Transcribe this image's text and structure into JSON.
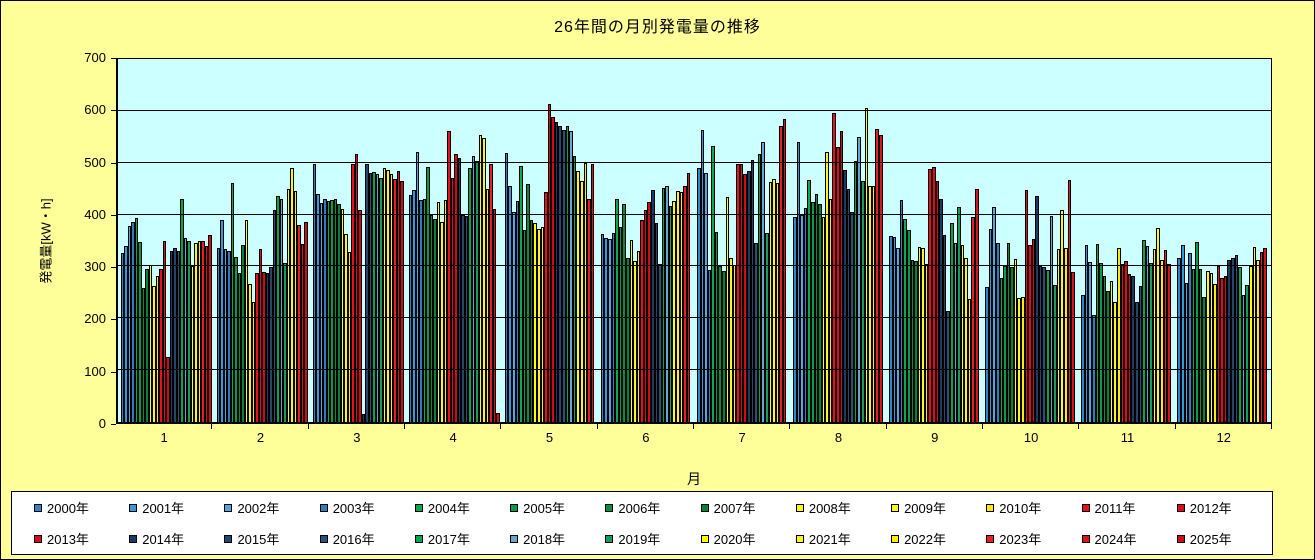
{
  "window": {
    "background_color": "#FFFF99",
    "plot_background_color": "#CCFFFF",
    "legend_background_color": "#FFFFFF"
  },
  "chart_data": {
    "type": "bar",
    "title": "26年間の月別発電量の推移",
    "xlabel": "月",
    "ylabel": "発電量[kW・h]",
    "ylim": [
      0,
      700
    ],
    "ytick_interval": 100,
    "yticks": [
      0,
      100,
      200,
      300,
      400,
      500,
      600,
      700
    ],
    "grid": true,
    "legend_position": "bottom",
    "legend_rows": 2,
    "legend_items_per_row": 13,
    "categories": [
      "1",
      "2",
      "3",
      "4",
      "5",
      "6",
      "7",
      "8",
      "9",
      "10",
      "11",
      "12"
    ],
    "series": [
      {
        "name": "2000年",
        "color": "#2E86C8",
        "values": [
          325,
          335,
          497,
          437,
          519,
          362,
          490,
          395,
          358,
          260,
          244,
          316
        ]
      },
      {
        "name": "2001年",
        "color": "#339ADB",
        "values": [
          340,
          389,
          439,
          447,
          456,
          354,
          563,
          540,
          356,
          372,
          342,
          342
        ]
      },
      {
        "name": "2002年",
        "color": "#4FA8E0",
        "values": [
          378,
          333,
          422,
          520,
          405,
          352,
          481,
          400,
          336,
          415,
          308,
          269
        ]
      },
      {
        "name": "2003年",
        "color": "#2F7FBE",
        "values": [
          385,
          330,
          430,
          428,
          427,
          365,
          294,
          412,
          428,
          345,
          206,
          325
        ]
      },
      {
        "name": "2004年",
        "color": "#0CA94E",
        "values": [
          393,
          460,
          427,
          430,
          494,
          430,
          533,
          466,
          391,
          277,
          344,
          296
        ]
      },
      {
        "name": "2005年",
        "color": "#009E49",
        "values": [
          347,
          318,
          428,
          492,
          370,
          377,
          367,
          425,
          370,
          301,
          307,
          348
        ]
      },
      {
        "name": "2006年",
        "color": "#008F41",
        "values": [
          258,
          288,
          430,
          399,
          459,
          421,
          300,
          440,
          313,
          345,
          282,
          295
        ]
      },
      {
        "name": "2007年",
        "color": "#008237",
        "values": [
          295,
          341,
          420,
          391,
          389,
          316,
          291,
          420,
          311,
          298,
          253,
          241
        ]
      },
      {
        "name": "2008年",
        "color": "#FFFF00",
        "values": [
          303,
          389,
          411,
          424,
          383,
          351,
          433,
          395,
          337,
          315,
          272,
          291
        ]
      },
      {
        "name": "2009年",
        "color": "#FFF51F",
        "values": [
          262,
          267,
          363,
          385,
          373,
          310,
          316,
          520,
          336,
          239,
          231,
          287
        ]
      },
      {
        "name": "2010年",
        "color": "#FFEB00",
        "values": [
          282,
          232,
          328,
          428,
          377,
          330,
          302,
          430,
          304,
          242,
          336,
          266
        ]
      },
      {
        "name": "2011年",
        "color": "#F00E1E",
        "values": [
          295,
          287,
          497,
          561,
          443,
          389,
          498,
          595,
          487,
          448,
          304,
          301
        ]
      },
      {
        "name": "2012年",
        "color": "#E00A1A",
        "values": [
          350,
          334,
          516,
          471,
          613,
          408,
          497,
          530,
          492,
          342,
          310,
          277
        ]
      },
      {
        "name": "2013年",
        "color": "#D60818",
        "values": [
          125,
          290,
          408,
          516,
          589,
          424,
          478,
          561,
          465,
          353,
          285,
          282
        ]
      },
      {
        "name": "2014年",
        "color": "#1E3862",
        "values": [
          330,
          287,
          16,
          509,
          579,
          447,
          484,
          486,
          430,
          435,
          282,
          313
        ]
      },
      {
        "name": "2015年",
        "color": "#26456E",
        "values": [
          335,
          299,
          497,
          399,
          570,
          383,
          506,
          450,
          361,
          301,
          231,
          316
        ]
      },
      {
        "name": "2016年",
        "color": "#2D4F7A",
        "values": [
          330,
          408,
          481,
          397,
          563,
          304,
          345,
          405,
          215,
          298,
          263,
          323
        ]
      },
      {
        "name": "2017年",
        "color": "#00A550",
        "values": [
          431,
          436,
          483,
          490,
          570,
          452,
          516,
          503,
          383,
          294,
          351,
          298
        ]
      },
      {
        "name": "2018年",
        "color": "#62A8C8",
        "values": [
          355,
          430,
          479,
          513,
          561,
          455,
          540,
          550,
          345,
          397,
          339,
          244
        ]
      },
      {
        "name": "2019年",
        "color": "#169C5E",
        "values": [
          350,
          306,
          470,
          503,
          513,
          417,
          365,
          465,
          415,
          264,
          307,
          264
        ]
      },
      {
        "name": "2020年",
        "color": "#FFFF00",
        "values": [
          300,
          449,
          490,
          554,
          484,
          427,
          462,
          606,
          342,
          333,
          334,
          300
        ]
      },
      {
        "name": "2021年",
        "color": "#FFF51C",
        "values": [
          345,
          490,
          486,
          547,
          465,
          446,
          468,
          456,
          316,
          408,
          374,
          337
        ]
      },
      {
        "name": "2022年",
        "color": "#FFEC00",
        "values": [
          350,
          446,
          478,
          449,
          500,
          443,
          460,
          456,
          237,
          335,
          312,
          312
        ]
      },
      {
        "name": "2023年",
        "color": "#EE1C25",
        "values": [
          350,
          379,
          469,
          498,
          430,
          455,
          570,
          565,
          395,
          466,
          332,
          327
        ]
      },
      {
        "name": "2024年",
        "color": "#DF1218",
        "values": [
          340,
          344,
          484,
          411,
          497,
          481,
          585,
          554,
          450,
          289,
          304,
          335
        ]
      },
      {
        "name": "2025年",
        "color": "#D00D14",
        "values": [
          360,
          385,
          465,
          18,
          null,
          null,
          null,
          null,
          null,
          null,
          null,
          null
        ]
      }
    ]
  }
}
